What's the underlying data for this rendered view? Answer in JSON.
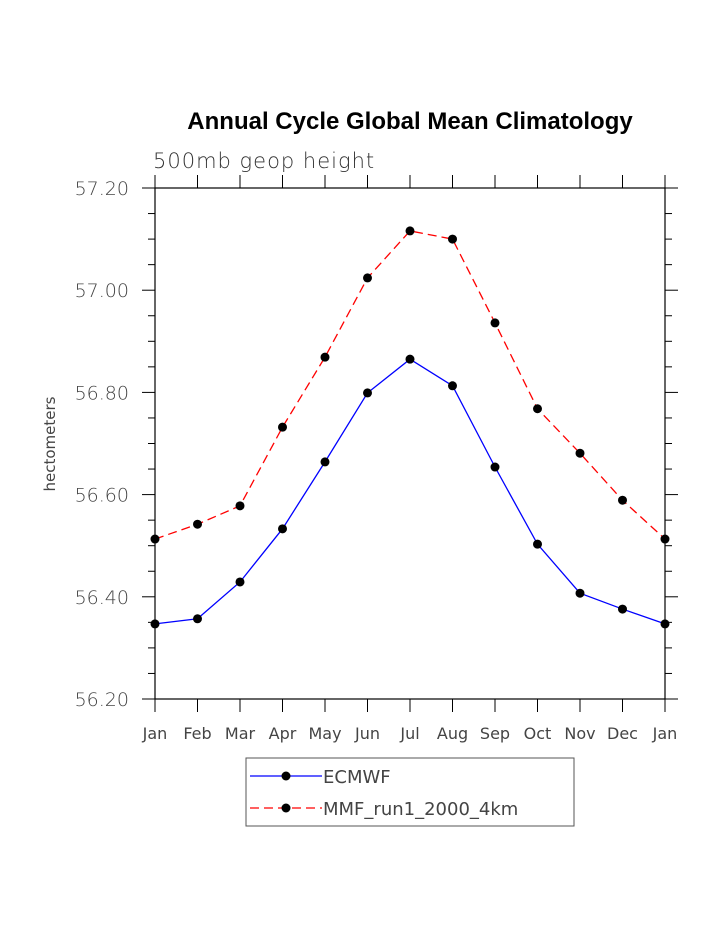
{
  "chart_data": {
    "type": "line",
    "title": "Annual Cycle Global Mean Climatology",
    "subtitle": "500mb geop height",
    "xlabel": "",
    "ylabel": "hectometers",
    "categories": [
      "Jan",
      "Feb",
      "Mar",
      "Apr",
      "May",
      "Jun",
      "Jul",
      "Aug",
      "Sep",
      "Oct",
      "Nov",
      "Dec",
      "Jan"
    ],
    "ylim": [
      56.2,
      57.2
    ],
    "yticks": [
      "56.20",
      "56.40",
      "56.60",
      "56.80",
      "57.00",
      "57.20"
    ],
    "grid": false,
    "legend_position": "bottom-center",
    "series": [
      {
        "name": "ECMWF",
        "color": "#0000ff",
        "dash": "solid",
        "values": [
          56.347,
          56.357,
          56.429,
          56.533,
          56.664,
          56.799,
          56.865,
          56.813,
          56.654,
          56.503,
          56.407,
          56.376,
          56.347
        ]
      },
      {
        "name": "MMF_run1_2000_4km",
        "color": "#ff0000",
        "dash": "dashed",
        "values": [
          56.513,
          56.542,
          56.578,
          56.732,
          56.869,
          57.024,
          57.116,
          57.1,
          56.936,
          56.768,
          56.681,
          56.589,
          56.513
        ]
      }
    ]
  }
}
